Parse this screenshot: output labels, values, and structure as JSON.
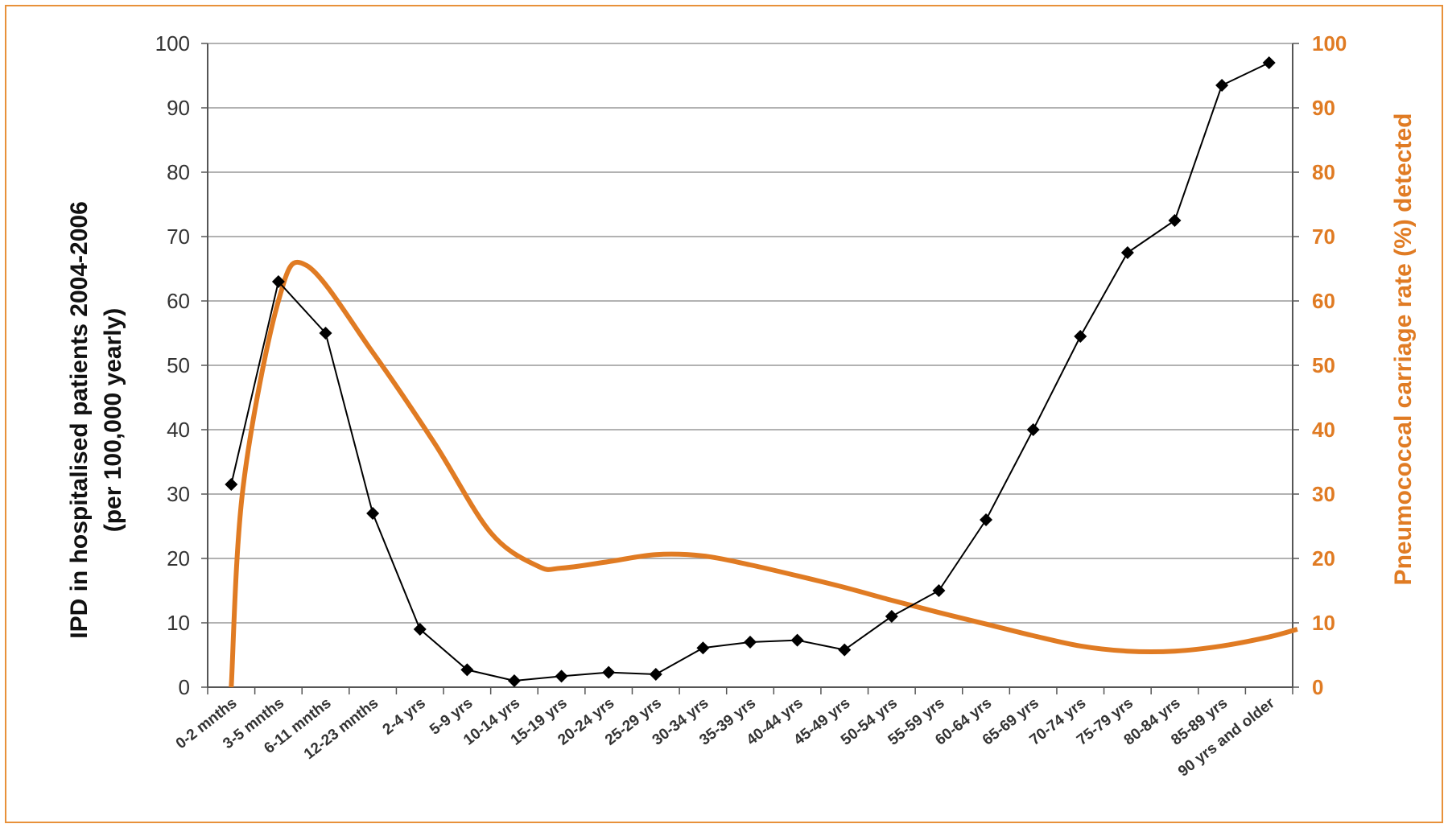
{
  "chart_data": {
    "type": "line",
    "categories": [
      "0-2 mnths",
      "3-5 mnths",
      "6-11 mnths",
      "12-23 mnths",
      "2-4 yrs",
      "5-9 yrs",
      "10-14 yrs",
      "15-19 yrs",
      "20-24 yrs",
      "25-29 yrs",
      "30-34 yrs",
      "35-39 yrs",
      "40-44 yrs",
      "45-49 yrs",
      "50-54 yrs",
      "55-59 yrs",
      "60-64 yrs",
      "65-69 yrs",
      "70-74 yrs",
      "75-79 yrs",
      "80-84 yrs",
      "85-89 yrs",
      "90 yrs and older"
    ],
    "series": [
      {
        "axis": "left",
        "color": "#000000",
        "marker": "diamond",
        "values": [
          31.5,
          63,
          55,
          27,
          9,
          2.7,
          1,
          1.7,
          2.3,
          2,
          6.1,
          7,
          7.3,
          5.8,
          11,
          15,
          26,
          40,
          54.5,
          67.5,
          72.5,
          93.5,
          97
        ]
      },
      {
        "axis": "right",
        "color": "#e07b23",
        "smooth": true,
        "points": [
          [
            0,
            0
          ],
          [
            0.25,
            31
          ],
          [
            1,
            60
          ],
          [
            1.6,
            65.5
          ],
          [
            3,
            52
          ],
          [
            4.3,
            38
          ],
          [
            5.5,
            24
          ],
          [
            6.5,
            18.8
          ],
          [
            7,
            18.5
          ],
          [
            8,
            19.5
          ],
          [
            9,
            20.6
          ],
          [
            10,
            20.4
          ],
          [
            11,
            19
          ],
          [
            12,
            17.3
          ],
          [
            13,
            15.5
          ],
          [
            14,
            13.5
          ],
          [
            15,
            11.6
          ],
          [
            16,
            9.8
          ],
          [
            17,
            8
          ],
          [
            18,
            6.4
          ],
          [
            19,
            5.6
          ],
          [
            20,
            5.6
          ],
          [
            21,
            6.4
          ],
          [
            22,
            7.8
          ],
          [
            22.6,
            9
          ]
        ]
      }
    ],
    "ylabel": "IPD in hospitalised patients 2004-2006",
    "ylabel_line2": "(per 100,000 yearly)",
    "y2label": "Pneumococcal carriage rate (%) detected",
    "ylim": [
      0,
      100
    ],
    "y2lim": [
      0,
      100
    ],
    "yticks": [
      "0",
      "10",
      "20",
      "30",
      "40",
      "50",
      "60",
      "70",
      "80",
      "90",
      "100"
    ],
    "grid": true
  },
  "colors": {
    "frame": "#e8913a",
    "accent": "#e07b23"
  }
}
